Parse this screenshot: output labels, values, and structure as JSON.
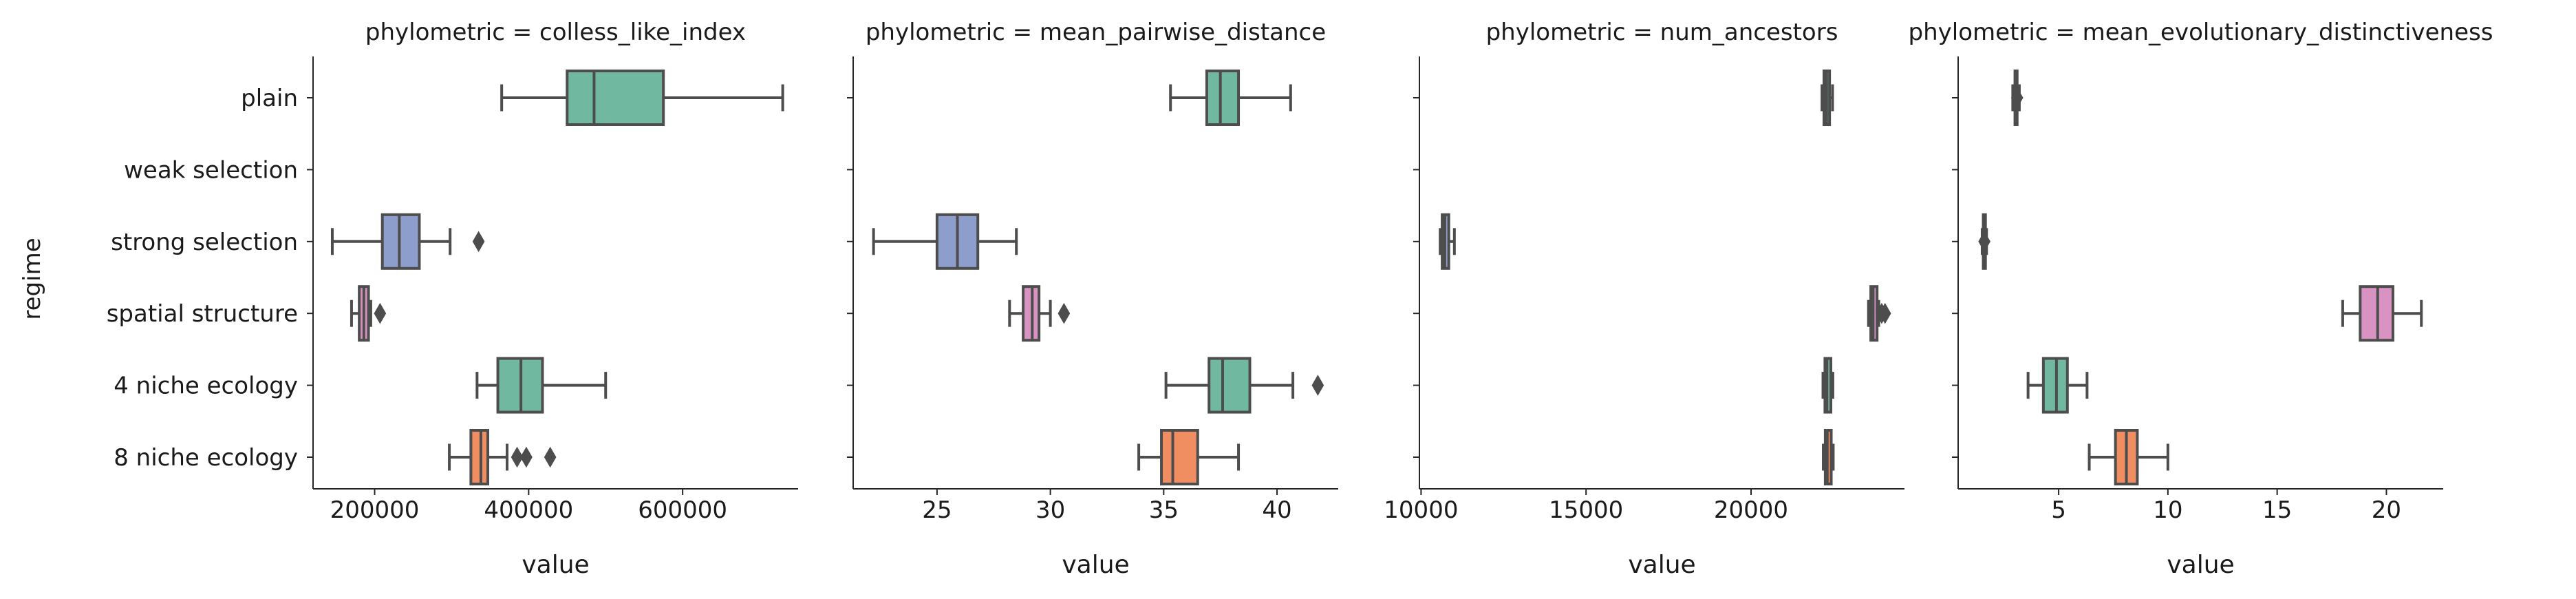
{
  "figure": {
    "ylabel": "regime",
    "xlabel": "value",
    "categories": [
      "plain",
      "weak selection",
      "strong selection",
      "spatial structure",
      "4 niche ecology",
      "8 niche ecology"
    ],
    "colors": {
      "plain": "#70b9a0",
      "weak selection": "#f08e62",
      "strong selection": "#8d9ecc",
      "spatial structure": "#d893c2",
      "4 niche ecology": "#70b9a0",
      "8 niche ecology": "#f08e62",
      "line": "#4d4d4d"
    }
  },
  "chart_data": [
    {
      "type": "box",
      "title": "phylometric = colless_like_index",
      "xlabel": "value",
      "ylabel": "regime",
      "xlim": [
        120000,
        750000
      ],
      "xticks": [
        200000,
        400000,
        600000
      ],
      "xticklabels": [
        "200000",
        "400000",
        "600000"
      ],
      "boxes": [
        {
          "category": "plain",
          "whislo": 365000,
          "q1": 450000,
          "med": 485000,
          "q3": 575000,
          "whishi": 730000,
          "fliers": []
        },
        {
          "category": "strong selection",
          "whislo": 145000,
          "q1": 210000,
          "med": 232000,
          "q3": 258000,
          "whishi": 298000,
          "fliers": [
            335000
          ]
        },
        {
          "category": "spatial structure",
          "whislo": 170000,
          "q1": 180000,
          "med": 186000,
          "q3": 192000,
          "whishi": 195000,
          "fliers": [
            207000
          ]
        },
        {
          "category": "4 niche ecology",
          "whislo": 333000,
          "q1": 360000,
          "med": 390000,
          "q3": 418000,
          "whishi": 500000,
          "fliers": []
        },
        {
          "category": "8 niche ecology",
          "whislo": 297000,
          "q1": 325000,
          "med": 338000,
          "q3": 347000,
          "whishi": 372000,
          "fliers": [
            385000,
            397000,
            428000
          ]
        }
      ]
    },
    {
      "type": "box",
      "title": "phylometric = mean_pairwise_distance",
      "xlabel": "value",
      "ylabel": "",
      "xlim": [
        21.3,
        42.7
      ],
      "xticks": [
        25,
        30,
        35,
        40
      ],
      "xticklabels": [
        "25",
        "30",
        "35",
        "40"
      ],
      "boxes": [
        {
          "category": "plain",
          "whislo": 35.3,
          "q1": 36.9,
          "med": 37.5,
          "q3": 38.3,
          "whishi": 40.6,
          "fliers": []
        },
        {
          "category": "strong selection",
          "whislo": 22.2,
          "q1": 25.0,
          "med": 25.9,
          "q3": 26.8,
          "whishi": 28.5,
          "fliers": []
        },
        {
          "category": "spatial structure",
          "whislo": 28.2,
          "q1": 28.8,
          "med": 29.2,
          "q3": 29.5,
          "whishi": 30.0,
          "fliers": [
            30.6
          ]
        },
        {
          "category": "4 niche ecology",
          "whislo": 35.1,
          "q1": 37.0,
          "med": 37.6,
          "q3": 38.8,
          "whishi": 40.7,
          "fliers": [
            41.8
          ]
        },
        {
          "category": "8 niche ecology",
          "whislo": 33.9,
          "q1": 34.9,
          "med": 35.4,
          "q3": 36.5,
          "whishi": 38.3,
          "fliers": []
        }
      ]
    },
    {
      "type": "box",
      "title": "phylometric = num_ancestors",
      "xlabel": "value",
      "ylabel": "",
      "xlim": [
        9950,
        24650
      ],
      "xticks": [
        10000,
        15000,
        20000
      ],
      "xticklabels": [
        "10000",
        "15000",
        "20000"
      ],
      "boxes": [
        {
          "category": "plain",
          "whislo": 22150,
          "q1": 22210,
          "med": 22290,
          "q3": 22380,
          "whishi": 22470,
          "fliers": []
        },
        {
          "category": "strong selection",
          "whislo": 10580,
          "q1": 10640,
          "med": 10720,
          "q3": 10840,
          "whishi": 11010,
          "fliers": []
        },
        {
          "category": "spatial structure",
          "whislo": 23560,
          "q1": 23630,
          "med": 23700,
          "q3": 23820,
          "whishi": 23870,
          "fliers": [
            23960,
            24060
          ]
        },
        {
          "category": "4 niche ecology",
          "whislo": 22180,
          "q1": 22240,
          "med": 22300,
          "q3": 22420,
          "whishi": 22480,
          "fliers": []
        },
        {
          "category": "8 niche ecology",
          "whislo": 22190,
          "q1": 22250,
          "med": 22310,
          "q3": 22430,
          "whishi": 22490,
          "fliers": []
        }
      ]
    },
    {
      "type": "box",
      "title": "phylometric = mean_evolutionary_distinctiveness",
      "xlabel": "value",
      "ylabel": "",
      "xlim": [
        0.4,
        22.6
      ],
      "xticks": [
        5,
        10,
        15,
        20
      ],
      "xticklabels": [
        "5",
        "10",
        "15",
        "20"
      ],
      "boxes": [
        {
          "category": "plain",
          "whislo": 2.9,
          "q1": 3.0,
          "med": 3.05,
          "q3": 3.1,
          "whishi": 3.2,
          "fliers": [
            3.1
          ]
        },
        {
          "category": "strong selection",
          "whislo": 1.5,
          "q1": 1.55,
          "med": 1.6,
          "q3": 1.65,
          "whishi": 1.7,
          "fliers": [
            1.6
          ]
        },
        {
          "category": "spatial structure",
          "whislo": 18.0,
          "q1": 18.8,
          "med": 19.6,
          "q3": 20.3,
          "whishi": 21.6,
          "fliers": []
        },
        {
          "category": "4 niche ecology",
          "whislo": 3.6,
          "q1": 4.3,
          "med": 4.9,
          "q3": 5.4,
          "whishi": 6.3,
          "fliers": []
        },
        {
          "category": "8 niche ecology",
          "whislo": 6.4,
          "q1": 7.6,
          "med": 8.1,
          "q3": 8.6,
          "whishi": 10.0,
          "fliers": []
        }
      ]
    }
  ]
}
